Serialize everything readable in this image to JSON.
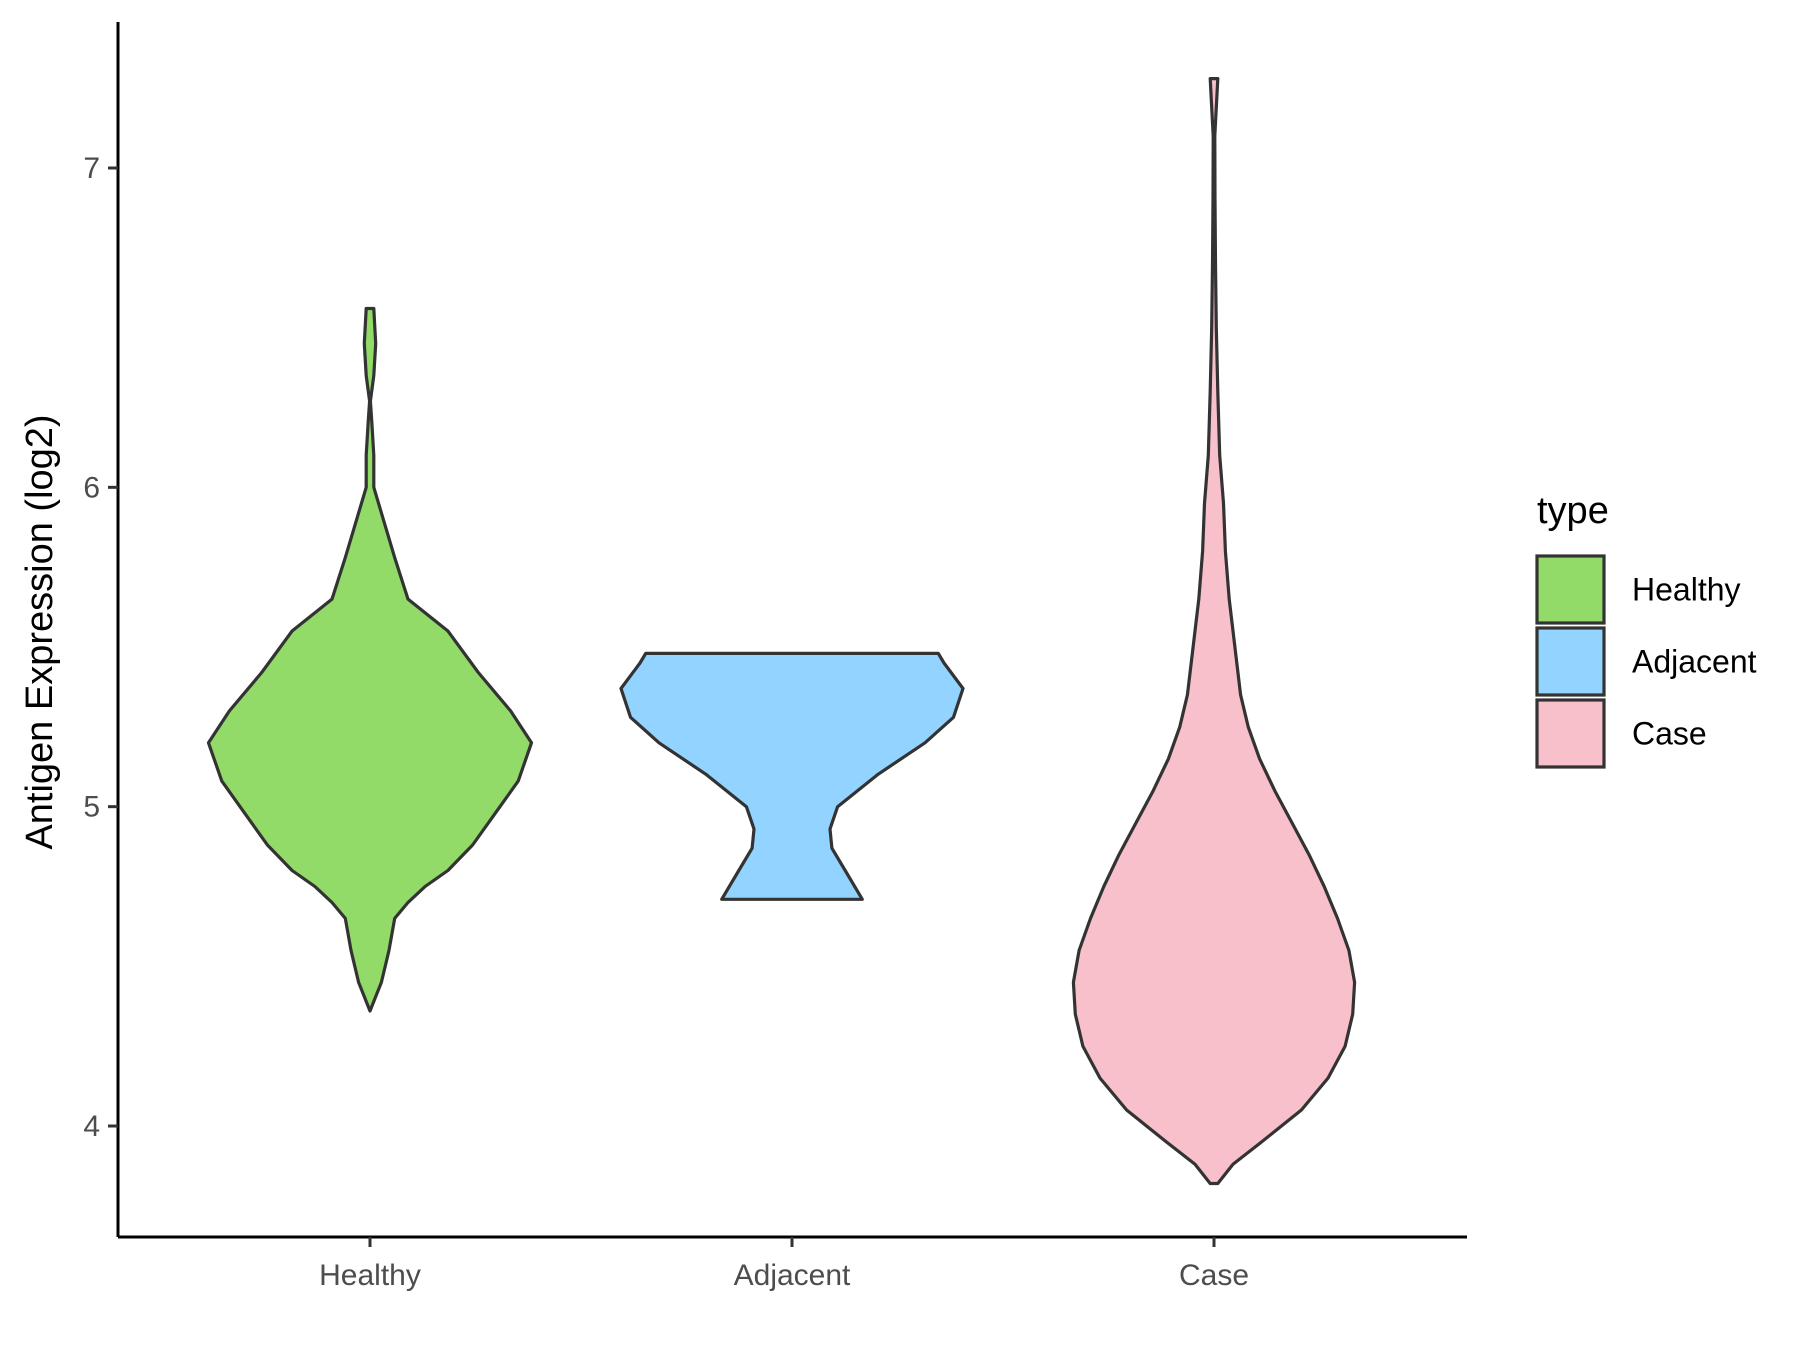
{
  "chart_data": {
    "type": "violin",
    "categories": [
      "Healthy",
      "Adjacent",
      "Case"
    ],
    "ylabel": "Antigen Expression (log2)",
    "xlabel": "",
    "ylim": [
      3.65,
      7.45
    ],
    "yticks": [
      4,
      5,
      6,
      7
    ],
    "ytick_labels": [
      "4",
      "5",
      "6",
      "7"
    ],
    "grid": false,
    "legend": {
      "title": "type",
      "position": "right",
      "entries": [
        "Healthy",
        "Adjacent",
        "Case"
      ]
    },
    "series": [
      {
        "category": "Healthy",
        "color": "#93DB69",
        "y_min": 4.36,
        "y_max": 6.56,
        "density": [
          [
            4.36,
            0.0
          ],
          [
            4.45,
            0.06
          ],
          [
            4.55,
            0.1
          ],
          [
            4.65,
            0.13
          ],
          [
            4.7,
            0.2
          ],
          [
            4.75,
            0.29
          ],
          [
            4.8,
            0.41
          ],
          [
            4.88,
            0.54
          ],
          [
            4.98,
            0.66
          ],
          [
            5.08,
            0.78
          ],
          [
            5.2,
            0.85
          ],
          [
            5.3,
            0.74
          ],
          [
            5.42,
            0.57
          ],
          [
            5.55,
            0.41
          ],
          [
            5.65,
            0.2
          ],
          [
            5.78,
            0.13
          ],
          [
            5.9,
            0.07
          ],
          [
            6.0,
            0.02
          ],
          [
            6.1,
            0.02
          ],
          [
            6.2,
            0.01
          ],
          [
            6.27,
            0.002
          ],
          [
            6.35,
            0.02
          ],
          [
            6.45,
            0.03
          ],
          [
            6.56,
            0.02
          ]
        ]
      },
      {
        "category": "Adjacent",
        "color": "#93D3FF",
        "y_min": 4.71,
        "y_max": 5.48,
        "density": [
          [
            4.71,
            0.37
          ],
          [
            4.8,
            0.28
          ],
          [
            4.87,
            0.21
          ],
          [
            4.93,
            0.2
          ],
          [
            5.0,
            0.24
          ],
          [
            5.1,
            0.45
          ],
          [
            5.2,
            0.7
          ],
          [
            5.28,
            0.85
          ],
          [
            5.37,
            0.9
          ],
          [
            5.45,
            0.8
          ],
          [
            5.48,
            0.77
          ]
        ]
      },
      {
        "category": "Case",
        "color": "#F7C0CB",
        "y_min": 3.82,
        "y_max": 7.28,
        "density": [
          [
            3.82,
            0.02
          ],
          [
            3.88,
            0.1
          ],
          [
            3.95,
            0.25
          ],
          [
            4.05,
            0.46
          ],
          [
            4.15,
            0.6
          ],
          [
            4.25,
            0.69
          ],
          [
            4.35,
            0.73
          ],
          [
            4.45,
            0.74
          ],
          [
            4.55,
            0.71
          ],
          [
            4.65,
            0.65
          ],
          [
            4.75,
            0.58
          ],
          [
            4.85,
            0.5
          ],
          [
            4.95,
            0.41
          ],
          [
            5.05,
            0.32
          ],
          [
            5.15,
            0.24
          ],
          [
            5.25,
            0.18
          ],
          [
            5.35,
            0.14
          ],
          [
            5.45,
            0.12
          ],
          [
            5.55,
            0.1
          ],
          [
            5.65,
            0.08
          ],
          [
            5.8,
            0.06
          ],
          [
            5.95,
            0.05
          ],
          [
            6.1,
            0.03
          ],
          [
            6.3,
            0.02
          ],
          [
            6.5,
            0.012
          ],
          [
            6.7,
            0.008
          ],
          [
            6.9,
            0.005
          ],
          [
            7.1,
            0.004
          ],
          [
            7.28,
            0.02
          ]
        ]
      }
    ]
  }
}
